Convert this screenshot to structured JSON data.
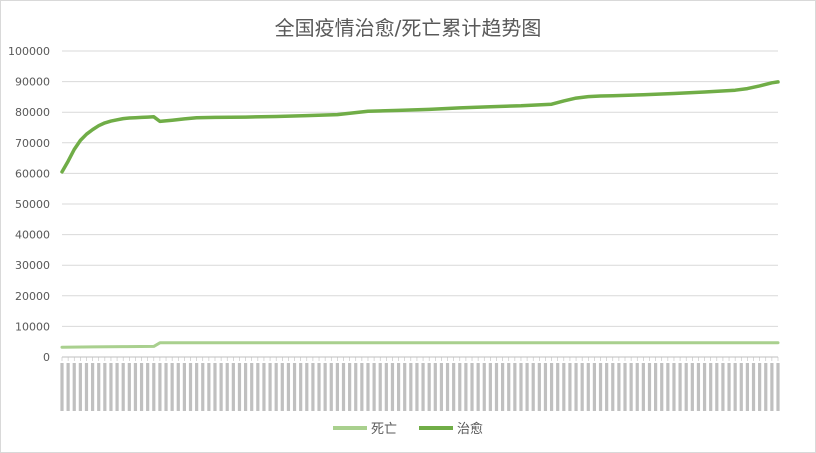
{
  "chart_data": {
    "type": "line",
    "title": "全国疫情治愈/死亡累计趋势图",
    "xlabel": "",
    "ylabel": "",
    "ylim": [
      0,
      100000
    ],
    "yticks": [
      0,
      10000,
      20000,
      30000,
      40000,
      50000,
      60000,
      70000,
      80000,
      90000,
      100000
    ],
    "grid": true,
    "legend": "bottom",
    "categories_count": 118,
    "series": [
      {
        "name": "死亡",
        "color": "#a9d08e",
        "x": [
          0,
          5,
          10,
          15,
          16,
          30,
          60,
          90,
          117
        ],
        "y": [
          3200,
          3300,
          3400,
          3450,
          4630,
          4640,
          4650,
          4660,
          4670
        ]
      },
      {
        "name": "治愈",
        "color": "#70ad47",
        "x": [
          0,
          1,
          2,
          3,
          4,
          5,
          6,
          7,
          8,
          9,
          10,
          11,
          12,
          13,
          14,
          15,
          16,
          18,
          20,
          22,
          25,
          30,
          35,
          40,
          45,
          50,
          55,
          60,
          65,
          70,
          75,
          80,
          82,
          84,
          86,
          88,
          90,
          95,
          100,
          105,
          110,
          112,
          114,
          116,
          117
        ],
        "y": [
          60500,
          64000,
          67800,
          70800,
          72800,
          74300,
          75600,
          76500,
          77100,
          77500,
          77900,
          78100,
          78200,
          78300,
          78400,
          78500,
          77000,
          77400,
          77800,
          78200,
          78300,
          78400,
          78600,
          78900,
          79200,
          80300,
          80600,
          80900,
          81400,
          81800,
          82100,
          82600,
          83700,
          84600,
          85100,
          85300,
          85400,
          85700,
          86100,
          86600,
          87200,
          87700,
          88600,
          89600,
          89900
        ]
      }
    ]
  }
}
